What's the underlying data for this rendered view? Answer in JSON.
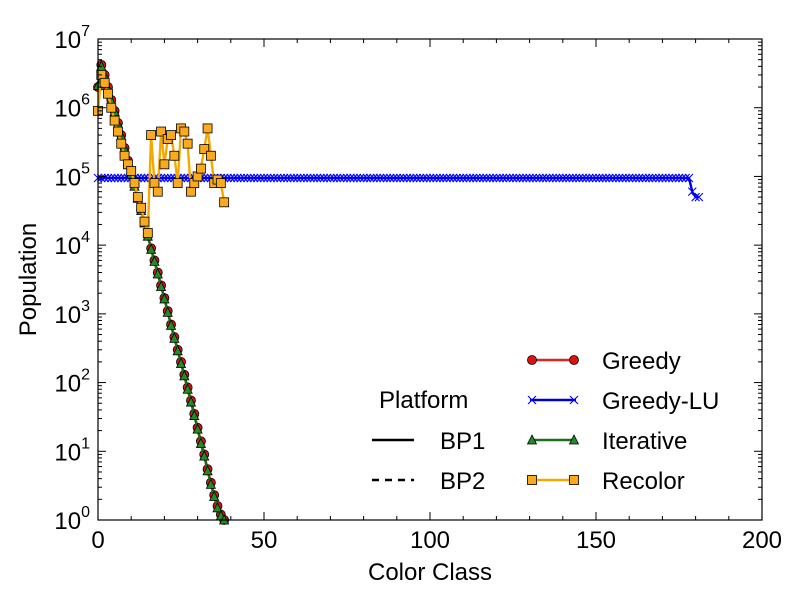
{
  "chart_data": {
    "type": "line",
    "title": "",
    "xlabel": "Color Class",
    "ylabel": "Population",
    "xlim": [
      0,
      200
    ],
    "ylim": [
      1,
      10000000
    ],
    "yscale": "log",
    "grid": false,
    "x_ticks": [
      {
        "value": 0,
        "label": "0"
      },
      {
        "value": 50,
        "label": "50"
      },
      {
        "value": 100,
        "label": "100"
      },
      {
        "value": 150,
        "label": "150"
      },
      {
        "value": 200,
        "label": "200"
      }
    ],
    "y_ticks": [
      {
        "value": 1,
        "base": "10",
        "exp": "0"
      },
      {
        "value": 10,
        "base": "10",
        "exp": "1"
      },
      {
        "value": 100,
        "base": "10",
        "exp": "2"
      },
      {
        "value": 1000,
        "base": "10",
        "exp": "3"
      },
      {
        "value": 10000,
        "base": "10",
        "exp": "4"
      },
      {
        "value": 100000,
        "base": "10",
        "exp": "5"
      },
      {
        "value": 1000000,
        "base": "10",
        "exp": "6"
      },
      {
        "value": 10000000,
        "base": "10",
        "exp": "7"
      }
    ],
    "legend_placement": "bottom-right",
    "platform_legend": {
      "title": "Platform",
      "entries": [
        {
          "name": "BP1",
          "style": "solid"
        },
        {
          "name": "BP2",
          "style": "dashed"
        }
      ]
    },
    "series": [
      {
        "name": "Greedy",
        "color": "#d62728",
        "marker": "circle",
        "marker_color": "#dd1111",
        "x": [
          0,
          1,
          2,
          3,
          4,
          5,
          6,
          7,
          8,
          9,
          10,
          11,
          12,
          13,
          14,
          15,
          16,
          17,
          18,
          19,
          20,
          21,
          22,
          23,
          24,
          25,
          26,
          27,
          28,
          29,
          30,
          31,
          32,
          33,
          34,
          35,
          36,
          37,
          38
        ],
        "y": [
          2000000,
          4200000,
          3000000,
          2000000,
          1300000,
          900000,
          600000,
          400000,
          260000,
          170000,
          110000,
          75000,
          50000,
          33000,
          22000,
          14000,
          9000,
          6000,
          4000,
          2600,
          1700,
          1100,
          700,
          460,
          300,
          200,
          130,
          85,
          55,
          35,
          22,
          14,
          9,
          5.5,
          3.5,
          2.3,
          1.6,
          1.2,
          1
        ]
      },
      {
        "name": "Greedy-LU",
        "color": "#0000cc",
        "marker": "x",
        "marker_color": "#0000ff",
        "x_range": [
          0,
          178
        ],
        "y_const": 95000,
        "tail_x": [
          179,
          180,
          181
        ],
        "tail_y": [
          60000,
          50000,
          50000
        ]
      },
      {
        "name": "Iterative",
        "color": "#1a6e1a",
        "marker": "triangle",
        "marker_color": "#228b22",
        "x": [
          0,
          1,
          2,
          3,
          4,
          5,
          6,
          7,
          8,
          9,
          10,
          11,
          12,
          13,
          14,
          15,
          16,
          17,
          18,
          19,
          20,
          21,
          22,
          23,
          24,
          25,
          26,
          27,
          28,
          29,
          30,
          31,
          32,
          33,
          34,
          35,
          36,
          37,
          38
        ],
        "y": [
          2100000,
          4000000,
          2900000,
          1900000,
          1250000,
          880000,
          580000,
          390000,
          255000,
          165000,
          108000,
          72000,
          48000,
          32000,
          21000,
          13500,
          8700,
          5800,
          3800,
          2500,
          1650,
          1050,
          680,
          440,
          290,
          190,
          125,
          80,
          52,
          33,
          21,
          13,
          8.5,
          5.2,
          3.3,
          2.2,
          1.5,
          1.15,
          1
        ]
      },
      {
        "name": "Recolor",
        "color": "#f5a800",
        "marker": "square",
        "marker_color": "#fbaa1e",
        "x": [
          0,
          1,
          2,
          3,
          4,
          5,
          6,
          7,
          8,
          9,
          10,
          11,
          12,
          13,
          14,
          15,
          16,
          17,
          18,
          19,
          20,
          21,
          22,
          23,
          24,
          25,
          26,
          27,
          28,
          29,
          30,
          31,
          32,
          33,
          34,
          35,
          36,
          37,
          38
        ],
        "y": [
          900000,
          3000000,
          2300000,
          1600000,
          1000000,
          650000,
          450000,
          300000,
          200000,
          150000,
          120000,
          80000,
          50000,
          35000,
          22000,
          15000,
          400000,
          80000,
          60000,
          450000,
          150000,
          350000,
          400000,
          200000,
          80000,
          500000,
          450000,
          300000,
          60000,
          80000,
          100000,
          130000,
          250000,
          500000,
          200000,
          80000,
          90000,
          80000,
          42000
        ]
      }
    ]
  }
}
